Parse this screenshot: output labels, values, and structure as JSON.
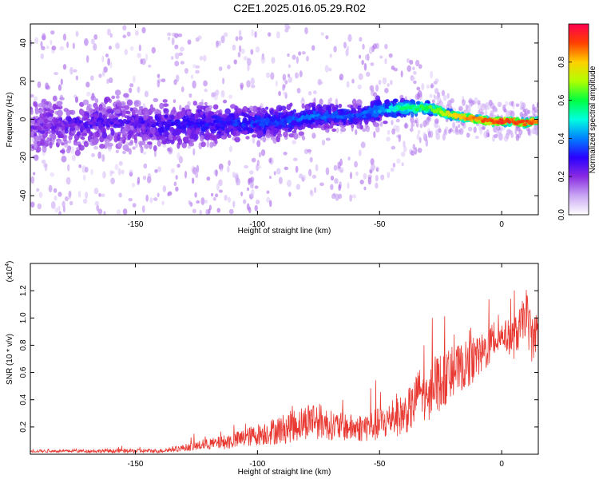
{
  "title": "C2E1.2025.016.05.29.R02",
  "chart_data": [
    {
      "type": "heatmap",
      "xlabel": "Height of straight line (km)",
      "ylabel": "Frequency (Hz)",
      "xlim": [
        -193,
        15
      ],
      "ylim": [
        -50,
        50
      ],
      "x_ticks": [
        -150,
        -100,
        -50,
        0
      ],
      "y_ticks": [
        -40,
        -20,
        0,
        20,
        40
      ],
      "colorbar": {
        "label": "Normalized spectral amplitude",
        "range": [
          0.0,
          1.0
        ],
        "ticks": [
          0.0,
          0.2,
          0.4,
          0.6,
          0.8
        ],
        "tick_labels": [
          "0.0",
          "0.2",
          "0.4",
          "0.6",
          "0.8"
        ],
        "colormap": [
          "#ffffff",
          "#c9a6f3",
          "#8a2be2",
          "#2a00ff",
          "#0080ff",
          "#00ffe0",
          "#00ff40",
          "#b0ff00",
          "#ffd000",
          "#ff4000",
          "#ff0050"
        ]
      },
      "ridge": {
        "x": [
          -193,
          -180,
          -170,
          -160,
          -150,
          -140,
          -130,
          -120,
          -110,
          -100,
          -90,
          -80,
          -70,
          -60,
          -50,
          -40,
          -30,
          -25,
          -20,
          -15,
          -10,
          -5,
          0,
          5,
          10,
          14
        ],
        "frequency": [
          -5,
          -3,
          -2,
          -1,
          -2,
          -3,
          -3,
          -2,
          -2,
          -2,
          -1,
          1,
          2,
          2,
          5,
          6,
          6,
          4,
          2,
          1,
          0,
          -1,
          -1,
          -1,
          -2,
          -1
        ],
        "amplitude": [
          0.2,
          0.22,
          0.25,
          0.25,
          0.24,
          0.28,
          0.3,
          0.3,
          0.32,
          0.33,
          0.35,
          0.38,
          0.36,
          0.34,
          0.42,
          0.55,
          0.62,
          0.7,
          0.78,
          0.82,
          0.85,
          0.9,
          0.92,
          0.9,
          0.9,
          0.85
        ],
        "spread_hz": [
          22,
          22,
          20,
          20,
          18,
          16,
          15,
          14,
          12,
          12,
          11,
          10,
          9,
          9,
          8,
          6,
          4,
          3,
          2,
          2,
          2,
          2,
          2,
          2,
          2,
          2
        ]
      }
    },
    {
      "type": "line",
      "xlabel": "Height of straight line (km)",
      "ylabel": "SNR (10 * v/v)",
      "y_multiplier_label": "(x10",
      "y_multiplier_exp": "4",
      "y_multiplier_close": ")",
      "xlim": [
        -193,
        15
      ],
      "ylim": [
        0,
        1.4
      ],
      "x_ticks": [
        -150,
        -100,
        -50,
        0
      ],
      "y_ticks": [
        0.2,
        0.4,
        0.6,
        0.8,
        1.0,
        1.2
      ],
      "y_tick_labels": [
        "0.2",
        "0.4",
        "0.6",
        "0.8",
        "1.0",
        "1.2"
      ],
      "series": [
        {
          "color": "#e83a33",
          "envelope": {
            "x": [
              -193,
              -180,
              -160,
              -140,
              -130,
              -125,
              -120,
              -110,
              -100,
              -90,
              -80,
              -78,
              -70,
              -60,
              -50,
              -40,
              -36,
              -34,
              -30,
              -28,
              -25,
              -20,
              -15,
              -10,
              -5,
              0,
              5,
              8,
              10,
              12,
              14
            ],
            "baseline": [
              0.02,
              0.02,
              0.02,
              0.02,
              0.04,
              0.05,
              0.06,
              0.08,
              0.12,
              0.15,
              0.2,
              0.22,
              0.18,
              0.16,
              0.18,
              0.25,
              0.3,
              0.45,
              0.3,
              0.5,
              0.45,
              0.55,
              0.6,
              0.65,
              0.75,
              0.85,
              0.8,
              0.9,
              1.0,
              0.8,
              0.85
            ],
            "amplitude": [
              0.02,
              0.02,
              0.03,
              0.03,
              0.05,
              0.07,
              0.08,
              0.12,
              0.16,
              0.22,
              0.26,
              0.3,
              0.22,
              0.2,
              0.25,
              0.3,
              0.35,
              0.3,
              0.35,
              0.4,
              0.45,
              0.35,
              0.35,
              0.3,
              0.3,
              0.2,
              0.3,
              0.3,
              0.35,
              0.4,
              0.3
            ]
          }
        }
      ]
    }
  ]
}
